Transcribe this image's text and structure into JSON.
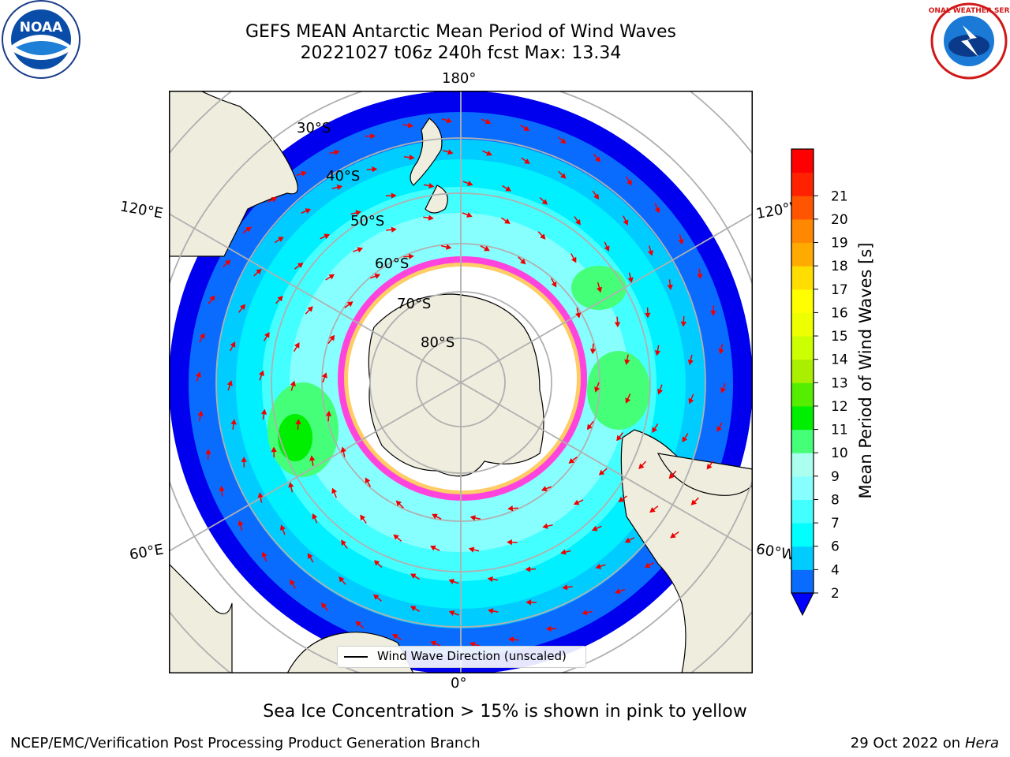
{
  "header": {
    "title_line1": "GEFS MEAN Antarctic Mean Period of Wind Waves",
    "title_line2": "20221027 t06z 240h fcst   Max: 13.34"
  },
  "logos": {
    "left": {
      "name": "noaa-logo",
      "text": "NOAA"
    },
    "right": {
      "name": "nws-logo",
      "text": "NATIONAL WEATHER SERVICE"
    }
  },
  "map": {
    "projection": "south-polar-stereographic",
    "lon_labels": {
      "top": "180°",
      "bottom": "0°",
      "left_upper": "120°E",
      "right_upper": "120°W",
      "left_lower": "60°E",
      "right_lower": "60°W"
    },
    "lat_labels": [
      "30°S",
      "40°S",
      "50°S",
      "60°S",
      "70°S",
      "80°S"
    ],
    "colors": {
      "land": "#efedde",
      "ice": "#ffffff",
      "ice_edge": "#ff44dd",
      "grid": "#b0b0b0"
    }
  },
  "legend": {
    "label": "Wind Wave Direction (unscaled)"
  },
  "colorbar": {
    "label": "Mean Period of Wind Waves [s]",
    "ticks": [
      "2",
      "4",
      "6",
      "7",
      "8",
      "9",
      "10",
      "11",
      "12",
      "13",
      "14",
      "15",
      "16",
      "17",
      "18",
      "19",
      "20",
      "21"
    ],
    "colors": [
      "#0a6cff",
      "#00ccff",
      "#00ffff",
      "#44ffff",
      "#88ffff",
      "#aaffee",
      "#44ff77",
      "#00ee00",
      "#55ee00",
      "#aaee00",
      "#ccff00",
      "#eeff00",
      "#ffff00",
      "#ffdd00",
      "#ffaa00",
      "#ff8800",
      "#ff5500",
      "#ff2200",
      "#ff0000"
    ],
    "extend_color": "#0000ff"
  },
  "footer": {
    "caption": "Sea Ice Concentration > 15% is shown in pink to yellow",
    "credit": "NCEP/EMC/Verification Post Processing Product Generation Branch",
    "date_prefix": "29 Oct 2022 on ",
    "date_system": "Hera"
  }
}
